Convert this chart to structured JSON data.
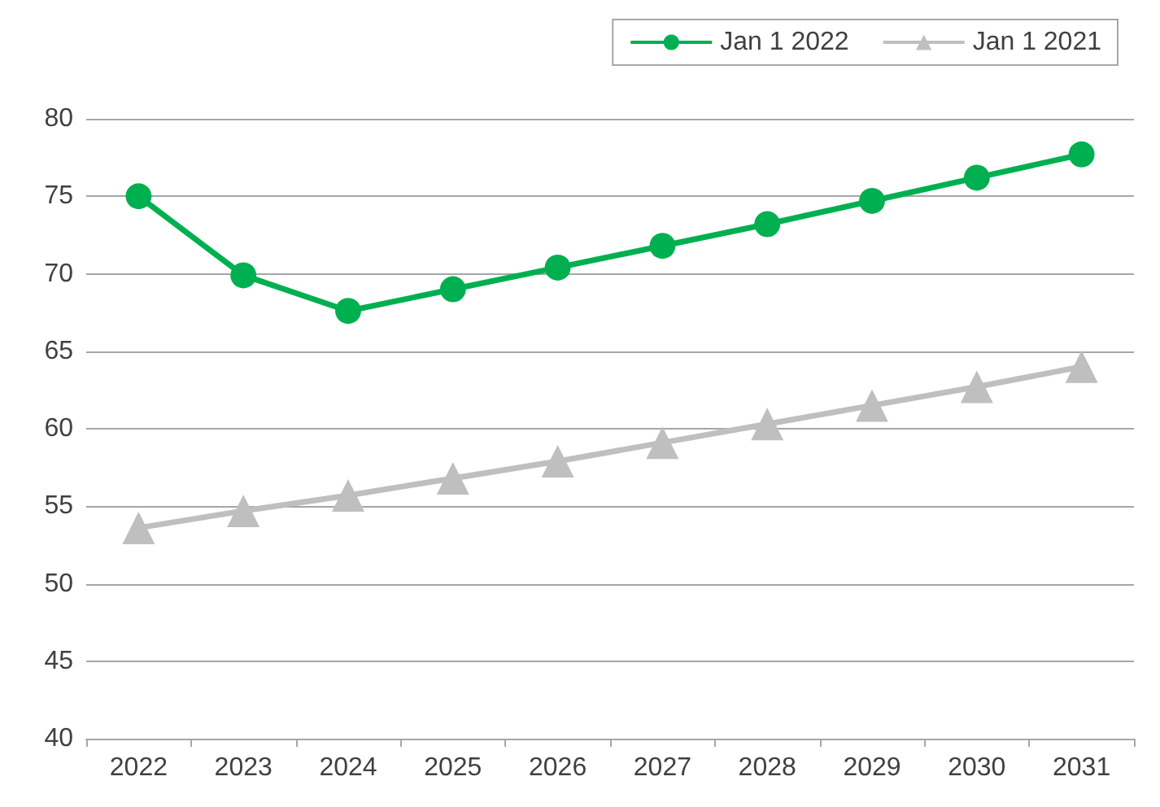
{
  "chart_data": {
    "type": "line",
    "categories": [
      "2022",
      "2023",
      "2024",
      "2025",
      "2026",
      "2027",
      "2028",
      "2029",
      "2030",
      "2031"
    ],
    "series": [
      {
        "name": "Jan 1 2022",
        "color": "#00b050",
        "marker": "circle",
        "values": [
          75,
          69.9,
          67.6,
          69,
          70.4,
          71.8,
          73.2,
          74.7,
          76.2,
          77.7
        ]
      },
      {
        "name": "Jan 1 2021",
        "color": "#bfbfbf",
        "marker": "triangle",
        "values": [
          53.6,
          54.7,
          55.7,
          56.8,
          57.9,
          59.1,
          60.3,
          61.5,
          62.7,
          64.0
        ]
      }
    ],
    "ylim": [
      40,
      80
    ],
    "yticks": [
      40,
      45,
      50,
      55,
      60,
      65,
      70,
      75,
      80
    ],
    "grid": "y",
    "legend": "top right"
  }
}
